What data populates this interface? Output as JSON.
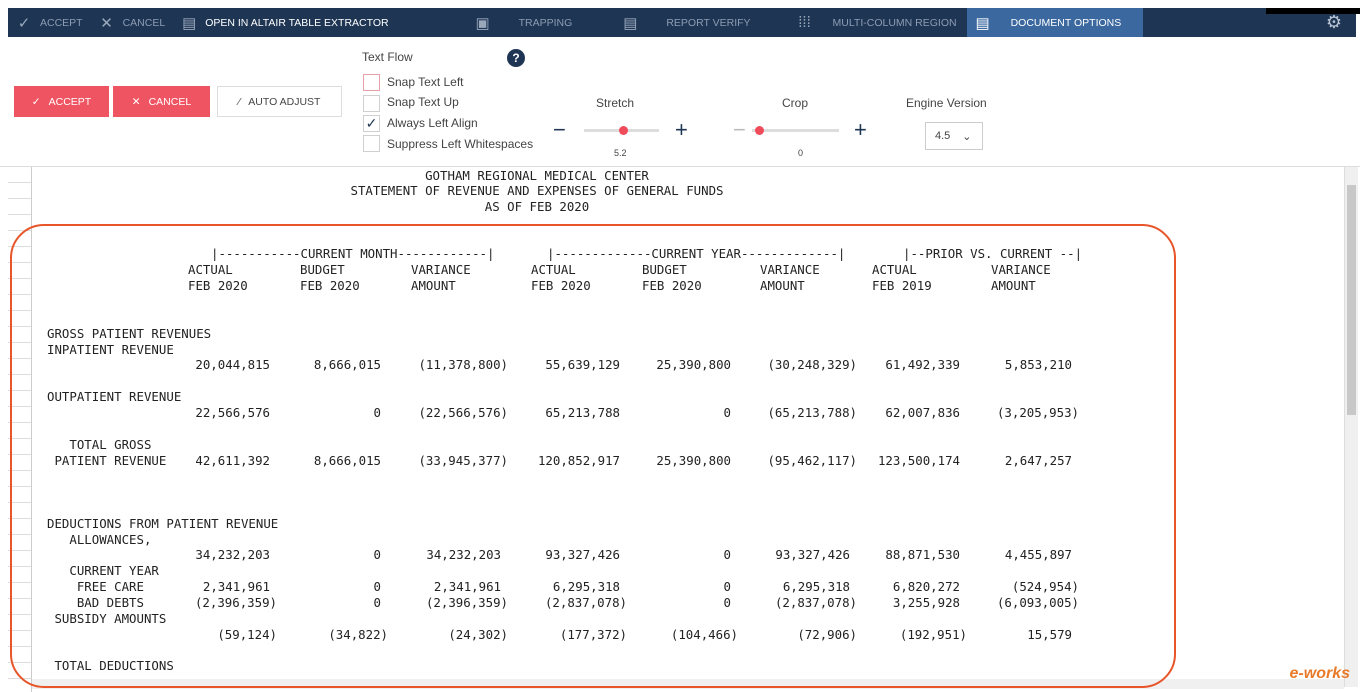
{
  "toolbar": {
    "accept": "ACCEPT",
    "cancel": "CANCEL",
    "open_extractor": "OPEN IN ALTAIR TABLE EXTRACTOR",
    "trapping": "TRAPPING",
    "report_verify": "REPORT VERIFY",
    "multi_column": "MULTI-COLUMN REGION",
    "document_options": "DOCUMENT OPTIONS"
  },
  "actions": {
    "accept": "ACCEPT",
    "cancel": "CANCEL",
    "auto_adjust": "AUTO ADJUST"
  },
  "text_flow": {
    "title": "Text Flow",
    "options": [
      {
        "label": "Snap Text Left",
        "checked": false
      },
      {
        "label": "Snap Text Up",
        "checked": false
      },
      {
        "label": "Always Left Align",
        "checked": true
      },
      {
        "label": "Suppress Left Whitespaces",
        "checked": false
      }
    ]
  },
  "stretch": {
    "label": "Stretch",
    "value": "5.2"
  },
  "crop": {
    "label": "Crop",
    "value": "0"
  },
  "engine": {
    "label": "Engine Version",
    "value": "4.5"
  },
  "document": {
    "title": [
      "GOTHAM REGIONAL MEDICAL CENTER",
      "STATEMENT OF REVENUE AND EXPENSES OF GENERAL FUNDS",
      "AS OF FEB 2020"
    ],
    "groups": [
      "|-----------CURRENT MONTH------------|",
      "|-------------CURRENT YEAR-------------|",
      "|--PRIOR VS. CURRENT --|"
    ],
    "col_head1": [
      "ACTUAL",
      "BUDGET",
      "VARIANCE",
      "ACTUAL",
      "BUDGET",
      "VARIANCE",
      "ACTUAL",
      "VARIANCE"
    ],
    "col_head2": [
      "FEB 2020",
      "FEB 2020",
      "AMOUNT",
      "FEB 2020",
      "FEB 2020",
      "AMOUNT",
      "FEB 2019",
      "AMOUNT"
    ],
    "rows": [
      {
        "label": "GROSS PATIENT REVENUES"
      },
      {
        "label": "INPATIENT REVENUE"
      },
      {
        "values": [
          "20,044,815",
          "8,666,015",
          "(11,378,800)",
          "55,639,129",
          "25,390,800",
          "(30,248,329)",
          "61,492,339",
          "5,853,210"
        ]
      },
      {
        "label": "OUTPATIENT REVENUE"
      },
      {
        "values": [
          "22,566,576",
          "0",
          "(22,566,576)",
          "65,213,788",
          "0",
          "(65,213,788)",
          "62,007,836",
          "(3,205,953)"
        ]
      },
      {
        "label": "   TOTAL GROSS"
      },
      {
        "label": " PATIENT REVENUE",
        "values": [
          "42,611,392",
          "8,666,015",
          "(33,945,377)",
          "120,852,917",
          "25,390,800",
          "(95,462,117)",
          "123,500,174",
          "2,647,257"
        ]
      },
      {
        "label": "DEDUCTIONS FROM PATIENT REVENUE"
      },
      {
        "label": "   ALLOWANCES,"
      },
      {
        "values": [
          "34,232,203",
          "0",
          "34,232,203",
          "93,327,426",
          "0",
          "93,327,426",
          "88,871,530",
          "4,455,897"
        ]
      },
      {
        "label": "   CURRENT YEAR"
      },
      {
        "label": "    FREE CARE",
        "values": [
          "2,341,961",
          "0",
          "2,341,961",
          "6,295,318",
          "0",
          "6,295,318",
          "6,820,272",
          "(524,954)"
        ]
      },
      {
        "label": "    BAD DEBTS",
        "values": [
          "(2,396,359)",
          "0",
          "(2,396,359)",
          "(2,837,078)",
          "0",
          "(2,837,078)",
          "3,255,928",
          "(6,093,005)"
        ]
      },
      {
        "label": " SUBSIDY AMOUNTS"
      },
      {
        "values": [
          "(59,124)",
          "(34,822)",
          "(24,302)",
          "(177,372)",
          "(104,466)",
          "(72,906)",
          "(192,951)",
          "15,579"
        ]
      },
      {
        "label": " TOTAL DEDUCTIONS"
      }
    ]
  },
  "watermark": "e-works"
}
